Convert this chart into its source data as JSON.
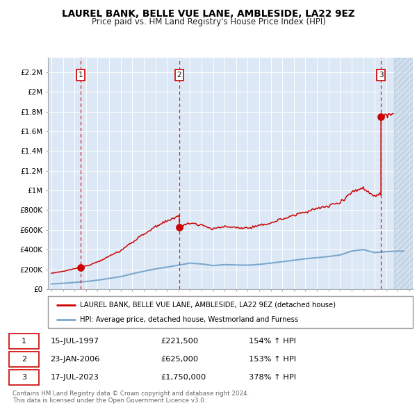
{
  "title": "LAUREL BANK, BELLE VUE LANE, AMBLESIDE, LA22 9EZ",
  "subtitle": "Price paid vs. HM Land Registry's House Price Index (HPI)",
  "yticks": [
    0,
    200000,
    400000,
    600000,
    800000,
    1000000,
    1200000,
    1400000,
    1600000,
    1800000,
    2000000,
    2200000
  ],
  "ytick_labels": [
    "£0",
    "£200K",
    "£400K",
    "£600K",
    "£800K",
    "£1M",
    "£1.2M",
    "£1.4M",
    "£1.6M",
    "£1.8M",
    "£2M",
    "£2.2M"
  ],
  "ylim_max": 2350000,
  "xlim_start": 1994.7,
  "xlim_end": 2026.3,
  "hatch_start": 2024.7,
  "transactions": [
    {
      "date_num": 1997.54,
      "price": 221500,
      "label": "1"
    },
    {
      "date_num": 2006.07,
      "price": 625000,
      "label": "2"
    },
    {
      "date_num": 2023.54,
      "price": 1750000,
      "label": "3"
    }
  ],
  "table_rows": [
    {
      "num": "1",
      "date": "15-JUL-1997",
      "price": "£221,500",
      "pct": "154% ↑ HPI"
    },
    {
      "num": "2",
      "date": "23-JAN-2006",
      "price": "£625,000",
      "pct": "153% ↑ HPI"
    },
    {
      "num": "3",
      "date": "17-JUL-2023",
      "price": "£1,750,000",
      "pct": "378% ↑ HPI"
    }
  ],
  "legend_line1": "LAUREL BANK, BELLE VUE LANE, AMBLESIDE, LA22 9EZ (detached house)",
  "legend_line2": "HPI: Average price, detached house, Westmorland and Furness",
  "footnote": "Contains HM Land Registry data © Crown copyright and database right 2024.\nThis data is licensed under the Open Government Licence v3.0.",
  "property_color": "#cc0000",
  "hpi_color": "#7ba7cc",
  "background_color": "#dce8f5",
  "grid_color": "#ffffff",
  "vline_color": "#cc0000",
  "label_box_color": "#cc0000",
  "num_box_color": "#cc0000"
}
